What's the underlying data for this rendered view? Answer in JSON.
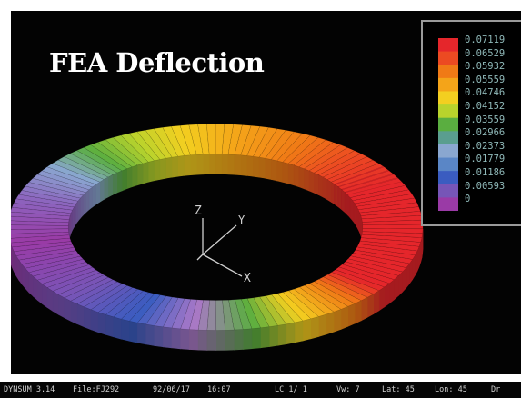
{
  "title": "FEA Deflection",
  "legend": {
    "labels": [
      "0.07119",
      "0.06529",
      "0.05932",
      "0.05559",
      "0.04746",
      "0.04152",
      "0.03559",
      "0.02966",
      "0.02373",
      "0.01779",
      "0.01186",
      "0.00593",
      "0"
    ],
    "colors": [
      "#e5262b",
      "#ec4a22",
      "#f07a16",
      "#f4a419",
      "#f3cf20",
      "#b9d32c",
      "#5aae40",
      "#5a9e8f",
      "#8aa7d0",
      "#5a86c6",
      "#3a5cc0",
      "#7655b7",
      "#9a3aa6"
    ]
  },
  "axes": {
    "z": "Z",
    "y": "Y",
    "x": "X"
  },
  "status_bar": {
    "program": "DYNSUM 3.14",
    "file": "File:FJ292",
    "date": "92/06/17",
    "time": "16:07",
    "lc": "LC  1/  1",
    "mode": "Vw: 7",
    "lat": "Lat:  45",
    "lon": "Lon:  45",
    "extra": "Dr"
  },
  "colors": {
    "background": "#030303",
    "frame": "#ffffff",
    "title": "#ffffff",
    "legend_text": "#8fb8b8"
  }
}
